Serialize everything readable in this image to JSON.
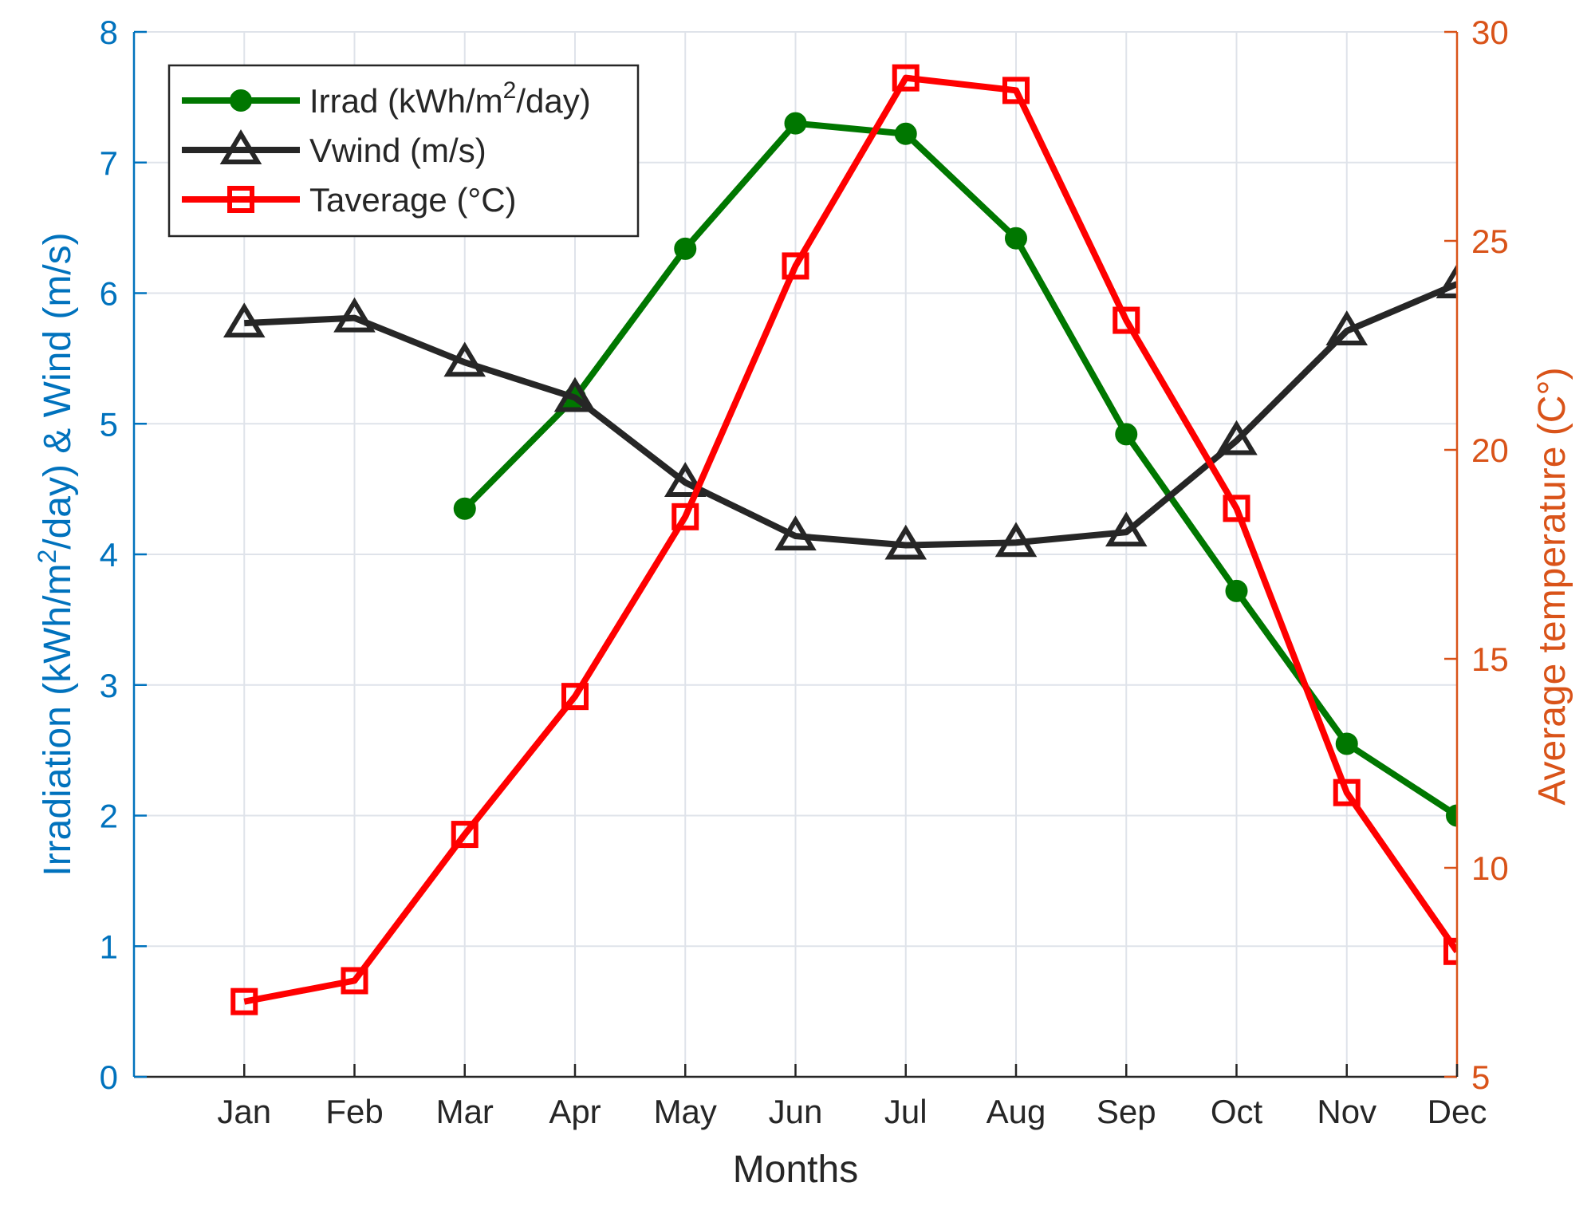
{
  "chart_data": {
    "type": "line",
    "categories": [
      "Jan",
      "Feb",
      "Mar",
      "Apr",
      "May",
      "Jun",
      "Jul",
      "Aug",
      "Sep",
      "Oct",
      "Nov",
      "Dec"
    ],
    "xlabel": "Months",
    "ylabel_left": {
      "pre": "Irradiation (kWh/m",
      "sup": "2",
      "post": "/day) & Wind (m/s)"
    },
    "ylabel_right": "Average temperature (C°)",
    "ylim_left": [
      0,
      8
    ],
    "ylim_right": [
      5,
      30
    ],
    "yticks_left": [
      "0",
      "1",
      "2",
      "3",
      "4",
      "5",
      "6",
      "7",
      "8"
    ],
    "yticks_right": [
      "5",
      "10",
      "15",
      "20",
      "25",
      "30"
    ],
    "grid": true,
    "legend_position": "top-left",
    "series": [
      {
        "name": "Irrad (kWh/m²/day)",
        "legend": {
          "pre": "Irrad (kWh/m",
          "sup": "2",
          "post": "/day)"
        },
        "axis": "left",
        "color": "#007700",
        "marker": "circle",
        "values": [
          null,
          null,
          4.35,
          5.2,
          6.34,
          7.3,
          7.22,
          6.42,
          4.92,
          3.72,
          2.55,
          2.0
        ]
      },
      {
        "name": "Vwind (m/s)",
        "legend": {
          "pre": "Vwind (m/s)",
          "sup": "",
          "post": ""
        },
        "axis": "left",
        "color": "#262626",
        "marker": "triangle",
        "values": [
          5.77,
          5.81,
          5.47,
          5.2,
          4.55,
          4.14,
          4.07,
          4.09,
          4.17,
          4.87,
          5.71,
          6.07
        ]
      },
      {
        "name": "Taverage (°C)",
        "legend": {
          "pre": "Taverage (°C)",
          "sup": "",
          "post": ""
        },
        "axis": "right",
        "color": "#ff0000",
        "marker": "square",
        "values": [
          6.8,
          7.3,
          10.8,
          14.1,
          18.4,
          24.4,
          28.9,
          28.6,
          23.1,
          18.6,
          11.8,
          8.0
        ]
      }
    ],
    "colors": {
      "left_axis": "#0072bd",
      "right_axis": "#d95319",
      "grid": "#dfe3ea",
      "text": "#262626"
    }
  }
}
